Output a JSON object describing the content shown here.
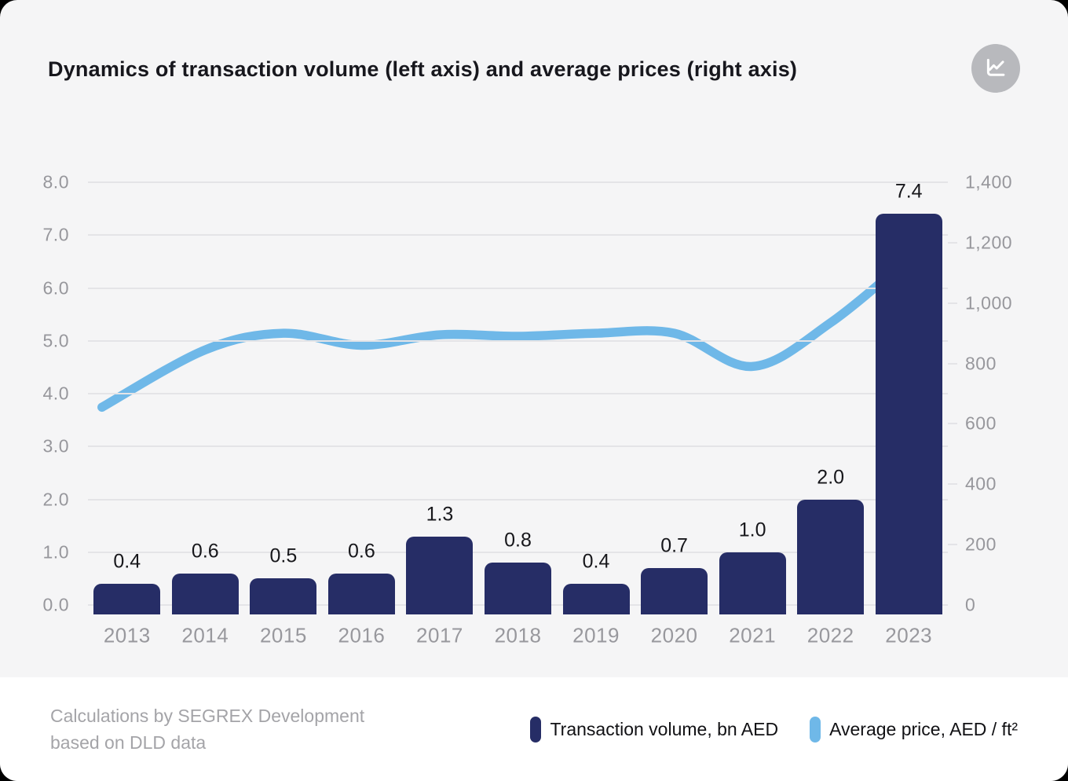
{
  "header": {
    "title": "Dynamics of transaction volume (left axis) and average prices (right axis)",
    "icon": "line-chart-icon"
  },
  "footer": {
    "source_line1": "Calculations by SEGREX Development",
    "source_line2": "based on DLD data",
    "legend": [
      {
        "label": "Transaction volume, bn AED",
        "color": "#262d66"
      },
      {
        "label": "Average price, AED / ft²",
        "color": "#6fb8e8"
      }
    ]
  },
  "chart_data": {
    "type": "bar",
    "subtype": "bar+line combo, dual axis",
    "title": "Dynamics of transaction volume (left axis) and average prices (right axis)",
    "categories": [
      "2013",
      "2014",
      "2015",
      "2016",
      "2017",
      "2018",
      "2019",
      "2020",
      "2021",
      "2022",
      "2023"
    ],
    "series": [
      {
        "name": "Transaction volume, bn AED",
        "type": "bar",
        "axis": "left",
        "color": "#262d66",
        "values": [
          0.4,
          0.6,
          0.5,
          0.6,
          1.3,
          0.8,
          0.4,
          0.7,
          1.0,
          2.0,
          7.4
        ],
        "data_labels": [
          "0.4",
          "0.6",
          "0.5",
          "0.6",
          "1.3",
          "0.8",
          "0.4",
          "0.7",
          "1.0",
          "2.0",
          "7.4"
        ]
      },
      {
        "name": "Average price, AED / ft²",
        "type": "line",
        "axis": "right",
        "color": "#6fb8e8",
        "estimated_from_chart": true,
        "values": [
          655,
          845,
          900,
          860,
          895,
          890,
          900,
          900,
          790,
          935,
          1165
        ]
      }
    ],
    "left_axis": {
      "min": 0,
      "max": 8,
      "ticks": [
        "8.0",
        "7.0",
        "6.0",
        "5.0",
        "4.0",
        "3.0",
        "2.0",
        "1.0",
        "0.0"
      ]
    },
    "right_axis": {
      "min": 0,
      "max": 1400,
      "ticks": [
        "1,400",
        "1,200",
        "1,000",
        "800",
        "600",
        "400",
        "200",
        "0"
      ]
    },
    "grid": "horizontal only",
    "legend_position": "bottom"
  }
}
